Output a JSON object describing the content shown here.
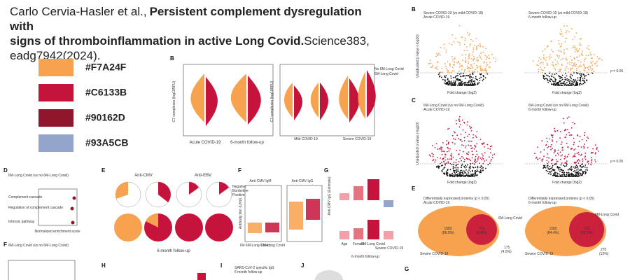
{
  "citation": {
    "authors": "Carlo Cervia-Hasler et al.,",
    "title": [
      "Persistent complement dysregulation with",
      "signs of thromboinflammation in active Long Covid."
    ],
    "journal": [
      "Science383,",
      "eadg7942(2024)."
    ]
  },
  "palette": [
    {
      "color": "#F7A24F",
      "label": "#F7A24F"
    },
    {
      "color": "#C6133B",
      "label": "#C6133B"
    },
    {
      "color": "#90162D",
      "label": "#90162D"
    },
    {
      "color": "#93A5CB",
      "label": "#93A5CB"
    }
  ],
  "figure": {
    "panel_b": {
      "letter": "B",
      "ylabel": "C7 complexes (log10RFU)",
      "groups": [
        "Acute COVID-19",
        "6-month follow-up"
      ],
      "subgroups": [
        "Mild COVID-19",
        "Severe COVID-19"
      ],
      "legend": [
        "No 6M-Long Covid",
        "6M-Long Covid"
      ]
    },
    "volcano_b": {
      "letter": "B",
      "titles": [
        "Severe COVID-19 (vs mild COVID-19)",
        "Severe COVID-19 (vs mild COVID-19)"
      ],
      "subtitles": [
        "Acute COVID-19",
        "6-month follow-up"
      ],
      "xlabel": "Fold change (log2)",
      "ylabel": "Unadjusted p value (-log10)",
      "threshold": "p = 0.05"
    },
    "volcano_c": {
      "letter": "C",
      "titles": [
        "6M-Long Covid (vs no 6M-Long Covid)",
        "6M-Long Covid (vs no 6M-Long Covid)"
      ],
      "subtitles": [
        "Acute COVID-19",
        "6-month follow-up"
      ],
      "xlabel": "Fold change (log2)",
      "ylabel": "Unadjusted p value (-log10)",
      "threshold": "p = 0.05"
    },
    "panel_d": {
      "letter": "D",
      "title": "6M-Long Covid (vs no 6M-Long Covid)",
      "rows": [
        "Complement cascade",
        "Regulation of complement cascade",
        "Intrinsic pathway"
      ],
      "xlabel": "Normalized enrichment score"
    },
    "panel_e": {
      "letter": "E",
      "titles": [
        "Anti-CMV",
        "Anti-EBV"
      ],
      "footer": "6 month follow-up",
      "legend": [
        "Negative",
        "Borderline",
        "Positive"
      ]
    },
    "panel_f": {
      "letter": "F",
      "titles": [
        "Anti-CMV IgM",
        "Anti-CMV IgG"
      ],
      "ylabel": "Antibody titer (U/ml)",
      "groups": [
        "No 6M-Long Covid",
        "6M-Long Covid"
      ]
    },
    "panel_g": {
      "letter": "G",
      "ylabel": "Anti-CMV IgG (Estimate)",
      "xcats": [
        "Age",
        "Female",
        "6M-Long Covid",
        "Severe COVID-19"
      ],
      "footer": "6-month follow-up"
    },
    "venn_e": {
      "letter": "E",
      "titles": [
        "Differentially expressed proteins (p < 0.05)",
        "Differentially expressed proteins (p < 0.05)"
      ],
      "subtitles": [
        "Acute COVID-19",
        "6-month follow-up"
      ],
      "outer": "Severe COVID-19",
      "inner": "6M-Long Covid",
      "left": [
        {
          "n": "1583",
          "pct": "(89.9%)"
        },
        {
          "n": "1582",
          "pct": "(84.4%)"
        }
      ],
      "mid": [
        {
          "n": "173",
          "pct": "(9.8%)"
        },
        {
          "n": "310",
          "pct": "(16.5%)"
        }
      ],
      "right": [
        {
          "n": "175",
          "pct": "(4.5%)"
        },
        {
          "n": "270",
          "pct": "(13%)"
        }
      ]
    },
    "panel_f2": {
      "letter": "F",
      "title": "6M-Long Covid (vs no 6M-Long Covid)"
    },
    "panel_h": {
      "letter": "H"
    },
    "panel_i": {
      "letter": "I",
      "title": "SARS-CoV-2 specific IgG",
      "subtitle": "6 month follow-up"
    },
    "panel_j": {
      "letter": "J"
    },
    "panel_g2": {
      "letter": "G"
    }
  }
}
